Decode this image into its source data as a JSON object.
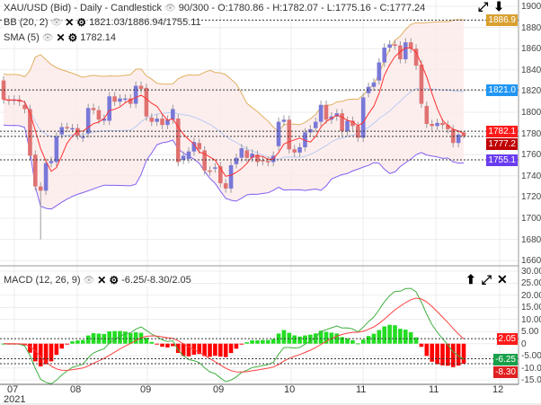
{
  "header": {
    "title": "XAU/USD (Bid) - Daily - Candlestick",
    "bars": "90/300",
    "ohlc": "O:1780.86 - H:1782.07 - L:1775.16 - C:1777.24"
  },
  "indicators": {
    "bb": {
      "label": "BB (20, 2)",
      "values": "1821.03/1886.94/1755.11"
    },
    "sma": {
      "label": "SMA (5)",
      "values": "1782.14"
    },
    "macd": {
      "label": "MACD (12, 26, 9)",
      "values": "-6.25/-8.30/2.05"
    }
  },
  "icons": {
    "eye": "👁",
    "close": "✕",
    "gear": "⚙",
    "expand": "⤢",
    "down": "⬇",
    "up": "⬆"
  },
  "price_tags": [
    {
      "text": "1886.9",
      "value": 1886.94,
      "color": "#d9a030"
    },
    {
      "text": "1821.0",
      "value": 1821.03,
      "color": "#2196f3"
    },
    {
      "text": "1782.1",
      "value": 1782.14,
      "color": "#ff1a1a"
    },
    {
      "text": "1777.2",
      "value": 1777.24,
      "color": "#c00000"
    },
    {
      "text": "1755.1",
      "value": 1755.11,
      "color": "#6a3cf0"
    }
  ],
  "macd_tags": [
    {
      "text": "2.05",
      "value": 2.05,
      "color": "#ff1a1a"
    },
    {
      "text": "-6.25",
      "value": -6.25,
      "color": "#1aa04a"
    },
    {
      "text": "-8.30",
      "value": -8.3,
      "color": "#e02020"
    }
  ],
  "chart_data": {
    "type": "candlestick",
    "symbol": "XAU/USD",
    "price_axis": {
      "min": 1660,
      "max": 1900,
      "step": 20,
      "ticks": [
        "1900.",
        "1880.",
        "1860.",
        "1840.",
        "1820.",
        "1800.",
        "1780.",
        "1760.",
        "1740.",
        "1720.",
        "1700.",
        "1680.",
        "1660."
      ]
    },
    "macd_axis": {
      "min": -15,
      "max": 30,
      "step": 5,
      "ticks": [
        "30.00",
        "25.00",
        "20.00",
        "15.00",
        "10.00",
        "5.00",
        "0",
        "-5.00",
        "-10.00",
        "-15.00"
      ]
    },
    "x_ticks": [
      "07",
      "08",
      "09",
      "09",
      "10",
      "11",
      "11",
      "12"
    ],
    "x_year": "2021",
    "candles_oc": [
      [
        1830,
        1812
      ],
      [
        1812,
        1811
      ],
      [
        1811,
        1812
      ],
      [
        1812,
        1810
      ],
      [
        1807,
        1803
      ],
      [
        1803,
        1759
      ],
      [
        1760,
        1730
      ],
      [
        1730,
        1726,
        1680
      ],
      [
        1726,
        1752
      ],
      [
        1752,
        1754
      ],
      [
        1753,
        1777
      ],
      [
        1779,
        1786
      ],
      [
        1786,
        1785
      ],
      [
        1785,
        1785
      ],
      [
        1785,
        1778
      ],
      [
        1776,
        1777
      ],
      [
        1780,
        1804
      ],
      [
        1804,
        1802
      ],
      [
        1802,
        1793
      ],
      [
        1792,
        1794
      ],
      [
        1792,
        1815
      ],
      [
        1815,
        1810
      ],
      [
        1810,
        1813
      ],
      [
        1813,
        1813
      ],
      [
        1813,
        1808
      ],
      [
        1808,
        1825
      ],
      [
        1825,
        1822
      ],
      [
        1823,
        1796
      ],
      [
        1795,
        1791
      ],
      [
        1791,
        1794
      ],
      [
        1794,
        1788
      ],
      [
        1788,
        1793
      ],
      [
        1793,
        1803
      ],
      [
        1794,
        1753
      ],
      [
        1755,
        1759
      ],
      [
        1756,
        1763
      ],
      [
        1763,
        1772
      ],
      [
        1771,
        1765
      ],
      [
        1764,
        1745
      ],
      [
        1745,
        1744
      ],
      [
        1747,
        1748
      ],
      [
        1749,
        1733
      ],
      [
        1733,
        1728
      ],
      [
        1728,
        1750
      ],
      [
        1751,
        1757
      ],
      [
        1757,
        1766
      ],
      [
        1764,
        1757
      ],
      [
        1757,
        1761
      ],
      [
        1760,
        1753
      ],
      [
        1755,
        1754
      ],
      [
        1754,
        1753
      ],
      [
        1753,
        1759
      ],
      [
        1768,
        1791
      ],
      [
        1791,
        1793
      ],
      [
        1793,
        1765
      ],
      [
        1765,
        1762
      ],
      [
        1762,
        1767
      ],
      [
        1767,
        1781
      ],
      [
        1781,
        1784
      ],
      [
        1785,
        1791
      ],
      [
        1791,
        1807
      ],
      [
        1807,
        1793
      ],
      [
        1793,
        1796
      ],
      [
        1796,
        1799
      ],
      [
        1799,
        1782
      ],
      [
        1782,
        1792
      ],
      [
        1792,
        1787
      ],
      [
        1787,
        1776
      ],
      [
        1776,
        1814
      ],
      [
        1818,
        1824
      ],
      [
        1824,
        1828
      ],
      [
        1830,
        1847
      ],
      [
        1847,
        1861
      ],
      [
        1861,
        1864
      ],
      [
        1864,
        1863
      ],
      [
        1863,
        1850
      ],
      [
        1850,
        1866
      ],
      [
        1866,
        1860
      ],
      [
        1860,
        1844
      ],
      [
        1845,
        1808
      ],
      [
        1806,
        1789
      ],
      [
        1789,
        1787
      ],
      [
        1787,
        1790
      ],
      [
        1790,
        1788
      ],
      [
        1788,
        1784
      ],
      [
        1784,
        1771
      ],
      [
        1771,
        1779
      ],
      [
        1780.86,
        1777.24,
        1775.16,
        1782.07
      ]
    ],
    "colors": {
      "up": "#7878d8",
      "down": "#e07272",
      "sma": "#ff3030",
      "bb_mid": "#b8ccf0",
      "bb_upper": "#e0b060",
      "bb_lower": "#8060f0",
      "bb_fill": "#fdeaea",
      "macd": "#ff4040",
      "signal": "#40b040",
      "hist_up": "#22dd22",
      "hist_down": "#ff0000"
    }
  }
}
